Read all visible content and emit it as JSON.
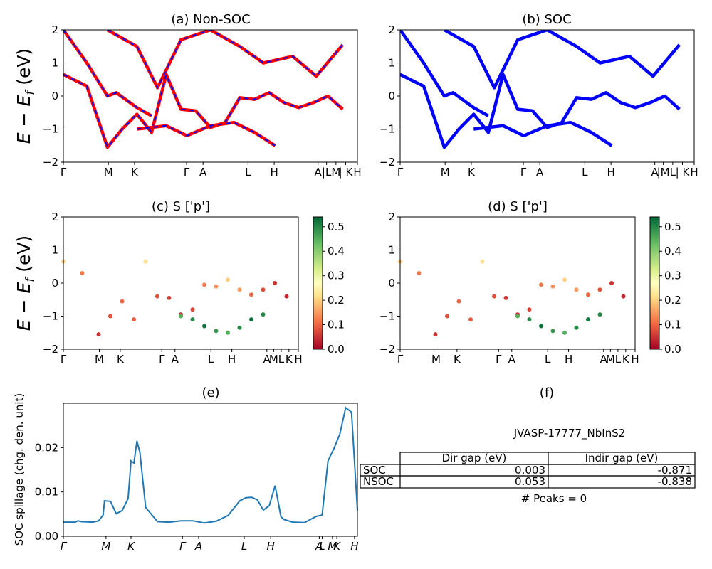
{
  "chart_data": [
    {
      "id": "a",
      "type": "line",
      "title": "(a) Non-SOC",
      "ylabel": "E − E_f (eV)",
      "ylim": [
        -2,
        2
      ],
      "yticks": [
        "2",
        "1",
        "0",
        "−1",
        "−2"
      ],
      "xticks": [
        "Γ",
        "M",
        "K",
        "Γ",
        "A",
        "L",
        "H",
        "A",
        "|L",
        "M",
        "| K",
        "H"
      ],
      "series": [
        {
          "color": "#ff0000",
          "dashed_overlay_color": "#0000ff",
          "x": [
            0,
            0.08,
            0.15,
            0.2,
            0.25,
            0.3,
            0.35,
            0.4,
            0.45,
            0.5,
            0.55,
            0.6,
            0.65,
            0.7,
            0.75,
            0.8,
            0.85,
            0.9,
            0.95
          ],
          "y": [
            0.65,
            0.3,
            -1.55,
            -1.0,
            -0.55,
            -1.1,
            0.65,
            -0.4,
            -0.45,
            -0.95,
            -0.8,
            -0.05,
            -0.1,
            0.1,
            -0.2,
            -0.35,
            -0.2,
            0.0,
            -0.4
          ]
        },
        {
          "x": [
            0,
            0.08,
            0.15,
            0.18,
            0.25,
            0.3
          ],
          "y": [
            2.0,
            1.0,
            0.0,
            0.1,
            -0.35,
            -0.6
          ]
        },
        {
          "x": [
            0.25,
            0.35,
            0.42,
            0.5,
            0.58,
            0.65,
            0.72
          ],
          "y": [
            -1.0,
            -0.9,
            -1.2,
            -0.9,
            -0.8,
            -1.1,
            -1.5
          ]
        },
        {
          "x": [
            0.15,
            0.25,
            0.32,
            0.4,
            0.5,
            0.6,
            0.68,
            0.78,
            0.86,
            0.95
          ],
          "y": [
            2.0,
            1.5,
            0.25,
            1.7,
            2.0,
            1.5,
            1.0,
            1.2,
            0.6,
            1.55
          ]
        }
      ]
    },
    {
      "id": "b",
      "type": "line",
      "title": "(b) SOC",
      "ylim": [
        -2,
        2
      ],
      "yticks": [
        "2",
        "1",
        "0",
        "−1",
        "−2"
      ],
      "xticks": [
        "Γ",
        "M",
        "K",
        "Γ",
        "A",
        "L",
        "H",
        "A",
        "|M",
        "L",
        "| K",
        "H"
      ],
      "series": [
        {
          "color": "#0000ff",
          "x": [
            0,
            0.08,
            0.15,
            0.2,
            0.25,
            0.3,
            0.35,
            0.4,
            0.45,
            0.5,
            0.55,
            0.6,
            0.65,
            0.7,
            0.75,
            0.8,
            0.85,
            0.9,
            0.95
          ],
          "y": [
            0.65,
            0.3,
            -1.55,
            -1.0,
            -0.55,
            -1.1,
            0.65,
            -0.4,
            -0.45,
            -0.95,
            -0.8,
            -0.05,
            -0.1,
            0.1,
            -0.2,
            -0.35,
            -0.2,
            0.0,
            -0.4
          ]
        },
        {
          "x": [
            0,
            0.08,
            0.15,
            0.18,
            0.25,
            0.3
          ],
          "y": [
            2.0,
            1.0,
            0.0,
            0.1,
            -0.35,
            -0.6
          ]
        },
        {
          "x": [
            0.25,
            0.35,
            0.42,
            0.5,
            0.58,
            0.65,
            0.72
          ],
          "y": [
            -1.0,
            -0.9,
            -1.2,
            -0.9,
            -0.8,
            -1.1,
            -1.5
          ]
        },
        {
          "x": [
            0.15,
            0.25,
            0.32,
            0.4,
            0.5,
            0.6,
            0.68,
            0.78,
            0.86,
            0.95
          ],
          "y": [
            2.0,
            1.5,
            0.25,
            1.7,
            2.0,
            1.5,
            1.0,
            1.2,
            0.6,
            1.55
          ]
        }
      ]
    },
    {
      "id": "c",
      "type": "scatter",
      "title": "(c)  S ['p']",
      "ylim": [
        -2,
        2
      ],
      "yticks": [
        "2",
        "1",
        "0",
        "−1",
        "−2"
      ],
      "xticks": [
        "Γ",
        "M",
        "K",
        "Γ",
        "A",
        "L",
        "H",
        "A",
        "M",
        "L",
        "K",
        "H"
      ],
      "colorbar": {
        "ticks": [
          "0.5",
          "0.4",
          "0.3",
          "0.2",
          "0.1",
          "0.0"
        ],
        "range": [
          0.0,
          0.54
        ],
        "cmap": "RdYlGn"
      },
      "points_x": [
        0,
        0.08,
        0.15,
        0.2,
        0.25,
        0.3,
        0.35,
        0.4,
        0.45,
        0.5,
        0.55,
        0.6,
        0.65,
        0.7,
        0.75,
        0.8,
        0.85,
        0.9,
        0.95
      ],
      "points_y": [
        0.65,
        0.3,
        -1.55,
        -1.0,
        -0.55,
        -1.1,
        0.65,
        -0.4,
        -0.45,
        -0.95,
        -0.8,
        -0.05,
        -0.1,
        0.1,
        -0.2,
        -0.35,
        -0.2,
        0.0,
        -0.4
      ],
      "points_c": [
        0.2,
        0.12,
        0.05,
        0.08,
        0.1,
        0.09,
        0.22,
        0.08,
        0.06,
        0.05,
        0.07,
        0.12,
        0.14,
        0.2,
        0.15,
        0.1,
        0.08,
        0.05,
        0.04
      ],
      "green_x": [
        0.5,
        0.55,
        0.6,
        0.65,
        0.7,
        0.75,
        0.8,
        0.85
      ],
      "green_y": [
        -1.0,
        -1.1,
        -1.3,
        -1.45,
        -1.5,
        -1.35,
        -1.1,
        -0.95
      ],
      "green_c": [
        0.45,
        0.5,
        0.52,
        0.48,
        0.45,
        0.5,
        0.52,
        0.5
      ]
    },
    {
      "id": "d",
      "type": "scatter",
      "title": "(d) S ['p']",
      "ylim": [
        -2,
        2
      ],
      "yticks": [
        "2",
        "1",
        "0",
        "−1",
        "−2"
      ],
      "xticks": [
        "Γ",
        "M",
        "K",
        "Γ",
        "A",
        "L",
        "H",
        "A",
        "M",
        "L",
        "K",
        "H"
      ],
      "colorbar": {
        "ticks": [
          "0.5",
          "0.4",
          "0.3",
          "0.2",
          "0.1",
          "0.0"
        ],
        "range": [
          0.0,
          0.54
        ],
        "cmap": "RdYlGn"
      },
      "points_x": [
        0,
        0.08,
        0.15,
        0.2,
        0.25,
        0.3,
        0.35,
        0.4,
        0.45,
        0.5,
        0.55,
        0.6,
        0.65,
        0.7,
        0.75,
        0.8,
        0.85,
        0.9,
        0.95
      ],
      "points_y": [
        0.65,
        0.3,
        -1.55,
        -1.0,
        -0.55,
        -1.1,
        0.65,
        -0.4,
        -0.45,
        -0.95,
        -0.8,
        -0.05,
        -0.1,
        0.1,
        -0.2,
        -0.35,
        -0.2,
        0.0,
        -0.4
      ],
      "points_c": [
        0.2,
        0.12,
        0.05,
        0.08,
        0.1,
        0.09,
        0.22,
        0.08,
        0.06,
        0.05,
        0.07,
        0.12,
        0.14,
        0.2,
        0.15,
        0.1,
        0.08,
        0.05,
        0.04
      ],
      "green_x": [
        0.5,
        0.55,
        0.6,
        0.65,
        0.7,
        0.75,
        0.8,
        0.85
      ],
      "green_y": [
        -1.0,
        -1.1,
        -1.3,
        -1.45,
        -1.5,
        -1.35,
        -1.1,
        -0.95
      ],
      "green_c": [
        0.45,
        0.5,
        0.52,
        0.48,
        0.45,
        0.5,
        0.52,
        0.5
      ]
    },
    {
      "id": "e",
      "type": "line",
      "title": "(e)",
      "ylabel": "SOC spillage (chg. den. unit)",
      "ylim": [
        0,
        0.03
      ],
      "yticks": [
        "0.02",
        "0.01",
        "0.00"
      ],
      "ytick_values": [
        0.02,
        0.01,
        0.0
      ],
      "xticks": [
        "Γ",
        "M",
        "K",
        "Γ",
        "A",
        "L",
        "H",
        "A",
        "L",
        "M",
        "K",
        "H"
      ],
      "color": "#1f77b4",
      "x": [
        0,
        0.02,
        0.04,
        0.05,
        0.06,
        0.1,
        0.12,
        0.135,
        0.14,
        0.16,
        0.18,
        0.2,
        0.22,
        0.23,
        0.24,
        0.25,
        0.26,
        0.28,
        0.32,
        0.36,
        0.4,
        0.44,
        0.48,
        0.52,
        0.56,
        0.6,
        0.62,
        0.64,
        0.66,
        0.68,
        0.7,
        0.72,
        0.74,
        0.75,
        0.78,
        0.82,
        0.86,
        0.88,
        0.9,
        0.92,
        0.94,
        0.96,
        0.98,
        1.0
      ],
      "y": [
        0.0032,
        0.0032,
        0.0032,
        0.0035,
        0.0033,
        0.0032,
        0.0035,
        0.0048,
        0.008,
        0.0079,
        0.0051,
        0.0058,
        0.0085,
        0.017,
        0.0165,
        0.0215,
        0.019,
        0.0065,
        0.0033,
        0.0032,
        0.0035,
        0.0035,
        0.003,
        0.0034,
        0.0047,
        0.008,
        0.0087,
        0.0088,
        0.0082,
        0.0059,
        0.0069,
        0.0114,
        0.0044,
        0.0038,
        0.0032,
        0.0031,
        0.0045,
        0.0048,
        0.017,
        0.0198,
        0.023,
        0.029,
        0.028,
        0.0058
      ]
    }
  ],
  "panel_f": {
    "title": "(f)",
    "material": "JVASP-17777_NbInS2",
    "table": {
      "headers": [
        "",
        "Dir gap (eV)",
        "Indir gap (eV)"
      ],
      "rows": [
        [
          "SOC",
          "0.003",
          "-0.871"
        ],
        [
          "NSOC",
          "0.053",
          "-0.838"
        ]
      ]
    },
    "peaks": "# Peaks = 0"
  }
}
